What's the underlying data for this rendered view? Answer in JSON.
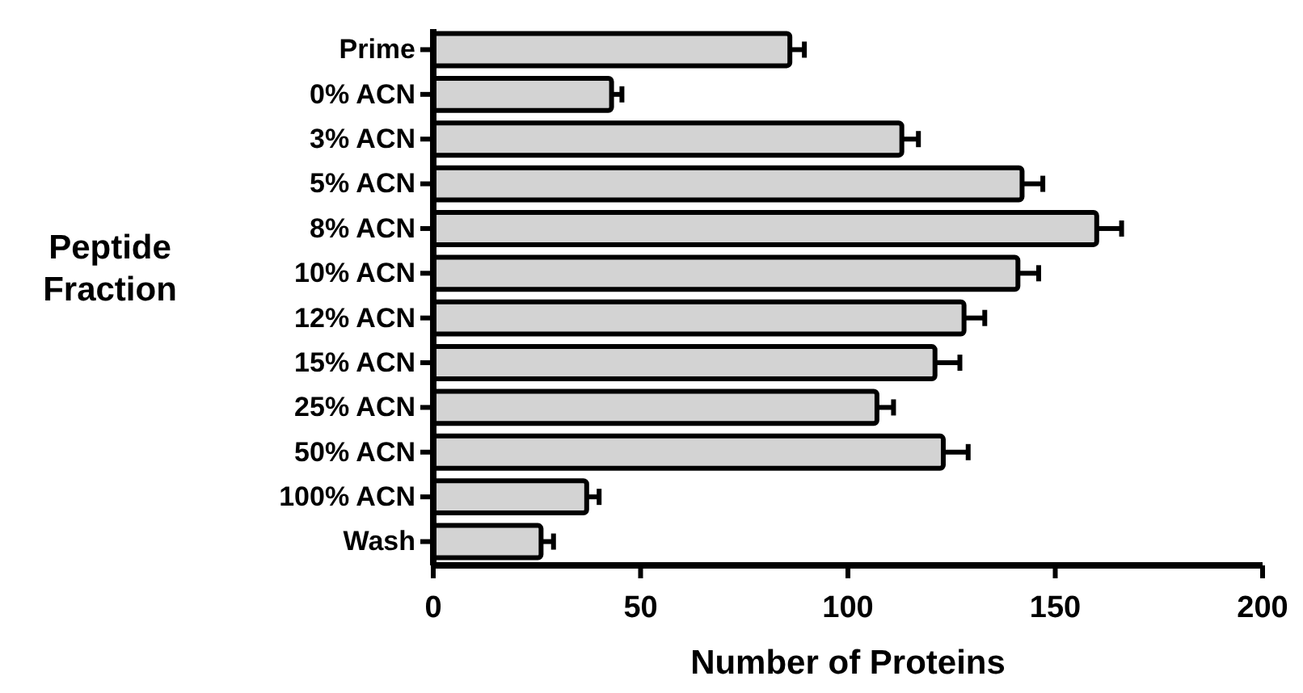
{
  "chart_data": {
    "type": "bar",
    "orientation": "horizontal",
    "xlabel": "Number of Proteins",
    "ylabel": "Peptide Fraction",
    "categories": [
      "Prime",
      "0% ACN",
      "3% ACN",
      "5% ACN",
      "8% ACN",
      "10% ACN",
      "12% ACN",
      "15% ACN",
      "25% ACN",
      "50% ACN",
      "100% ACN",
      "Wash"
    ],
    "values": [
      86,
      43,
      113,
      142,
      160,
      141,
      128,
      121,
      107,
      123,
      37,
      26
    ],
    "errors": [
      3.5,
      2.5,
      4,
      5,
      6,
      5,
      5,
      6,
      4,
      6,
      3,
      3
    ],
    "color": "#d3d3d3",
    "xlim": [
      0,
      200
    ],
    "xticks": [
      0,
      50,
      100,
      150,
      200
    ]
  }
}
